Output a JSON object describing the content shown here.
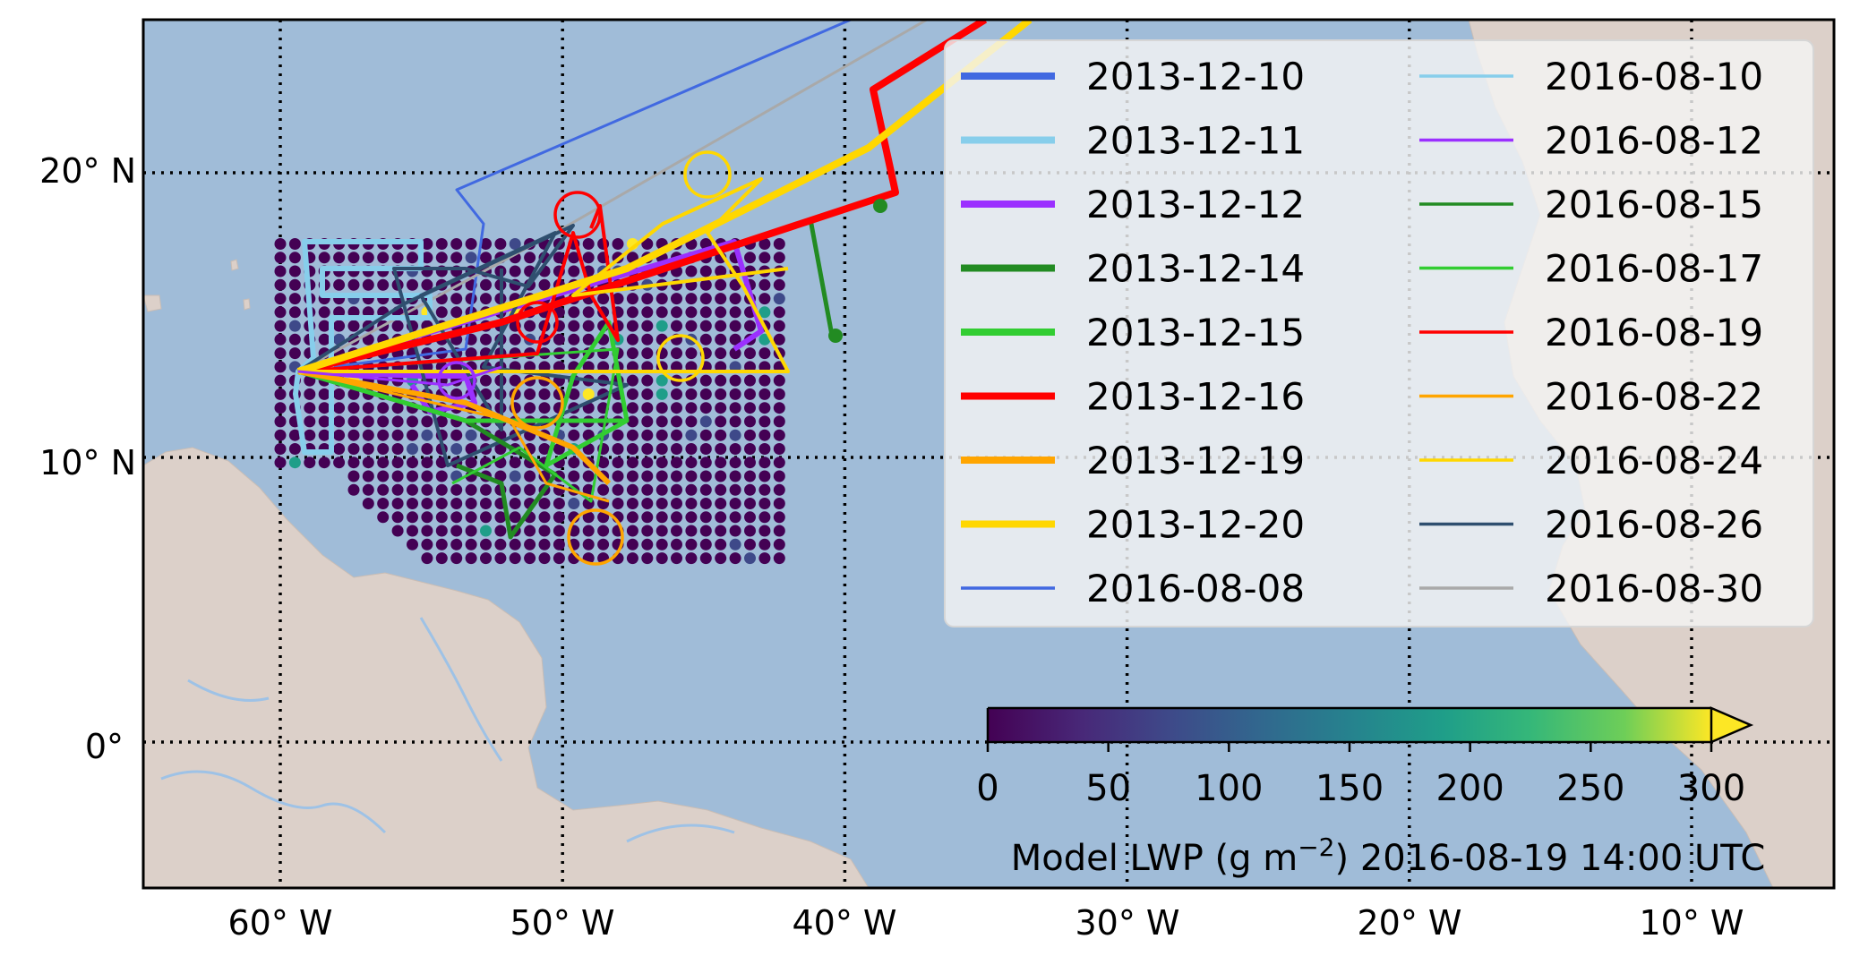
{
  "map": {
    "lon_ticks": [
      "60° W",
      "50° W",
      "40° W",
      "30° W",
      "20° W",
      "10° W"
    ],
    "lat_ticks": [
      "20° N",
      "10° N",
      "0°"
    ],
    "ocean_color": "#a0bcd8",
    "land_color": "#dcd0c9",
    "river_color": "#9ec2e6"
  },
  "legend": {
    "entries": [
      {
        "label": "2013-12-10",
        "color": "#4169e1",
        "style": "thick"
      },
      {
        "label": "2013-12-11",
        "color": "#87ceeb",
        "style": "thick"
      },
      {
        "label": "2013-12-12",
        "color": "#9b30ff",
        "style": "thick"
      },
      {
        "label": "2013-12-14",
        "color": "#228b22",
        "style": "thick"
      },
      {
        "label": "2013-12-15",
        "color": "#32cd32",
        "style": "thick"
      },
      {
        "label": "2013-12-16",
        "color": "#ff0000",
        "style": "thick"
      },
      {
        "label": "2013-12-19",
        "color": "#ffa500",
        "style": "thick"
      },
      {
        "label": "2013-12-20",
        "color": "#ffd700",
        "style": "thick"
      },
      {
        "label": "2016-08-08",
        "color": "#4169e1",
        "style": "thin"
      },
      {
        "label": "2016-08-10",
        "color": "#87ceeb",
        "style": "thin"
      },
      {
        "label": "2016-08-12",
        "color": "#9b30ff",
        "style": "thin"
      },
      {
        "label": "2016-08-15",
        "color": "#228b22",
        "style": "thin"
      },
      {
        "label": "2016-08-17",
        "color": "#32cd32",
        "style": "thin"
      },
      {
        "label": "2016-08-19",
        "color": "#ff0000",
        "style": "thin"
      },
      {
        "label": "2016-08-22",
        "color": "#ffa500",
        "style": "thin"
      },
      {
        "label": "2016-08-24",
        "color": "#ffd700",
        "style": "thin"
      },
      {
        "label": "2016-08-26",
        "color": "#2f4f6f",
        "style": "thin"
      },
      {
        "label": "2016-08-30",
        "color": "#a9a9a9",
        "style": "thin"
      }
    ]
  },
  "colorbar": {
    "ticks": [
      "0",
      "50",
      "100",
      "150",
      "200",
      "250",
      "300"
    ],
    "label": "Model LWP (g m",
    "label_sup": "−2",
    "label_suffix": ") 2016-08-19 14:00 UTC",
    "range": [
      0,
      300
    ],
    "extend": "max",
    "colormap": "viridis"
  }
}
